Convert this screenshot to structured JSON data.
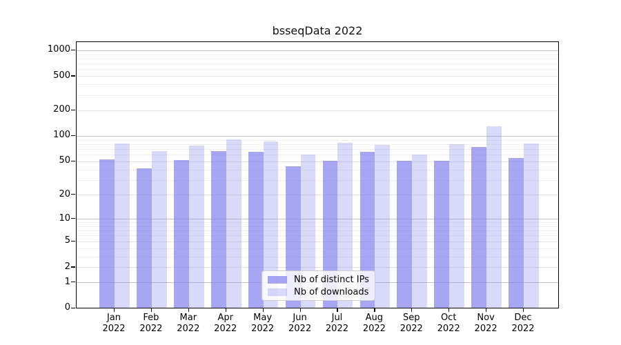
{
  "chart_data": {
    "type": "bar",
    "title": "bsseqData 2022",
    "categories": [
      "Jan 2022",
      "Feb 2022",
      "Mar 2022",
      "Apr 2022",
      "May 2022",
      "Jun 2022",
      "Jul 2022",
      "Aug 2022",
      "Sep 2022",
      "Oct 2022",
      "Nov 2022",
      "Dec 2022"
    ],
    "months": [
      "Jan",
      "Feb",
      "Mar",
      "Apr",
      "May",
      "Jun",
      "Jul",
      "Aug",
      "Sep",
      "Oct",
      "Nov",
      "Dec"
    ],
    "year": "2022",
    "series": [
      {
        "name": "Nb of distinct IPs",
        "color": "rgba(128,128,236,0.70)",
        "values": [
          52,
          41,
          51,
          65,
          64,
          43,
          50,
          64,
          50,
          50,
          73,
          54
        ]
      },
      {
        "name": "Nb of downloads",
        "color": "rgba(128,128,236,0.30)",
        "values": [
          80,
          65,
          76,
          90,
          85,
          59,
          82,
          77,
          60,
          79,
          127,
          80
        ]
      }
    ],
    "y_axis": {
      "scale": "log1p",
      "tick_values": [
        0,
        1,
        2,
        5,
        10,
        20,
        50,
        100,
        200,
        500,
        1000
      ],
      "max": 1245
    },
    "grid": {
      "major": [
        1,
        10,
        100,
        1000
      ],
      "minor_labeled": [
        2,
        5,
        20,
        50,
        200,
        500
      ],
      "minor": [
        3,
        4,
        6,
        7,
        8,
        9,
        30,
        40,
        60,
        70,
        80,
        90,
        300,
        400,
        600,
        700,
        800,
        900
      ]
    },
    "colors": {
      "grid_major": "#c3c3c3",
      "grid_minor_labeled": "#e3e3e3",
      "grid_minor": "#efefef",
      "axis": "#000000"
    },
    "legend_position": "inside-bottom-center"
  }
}
